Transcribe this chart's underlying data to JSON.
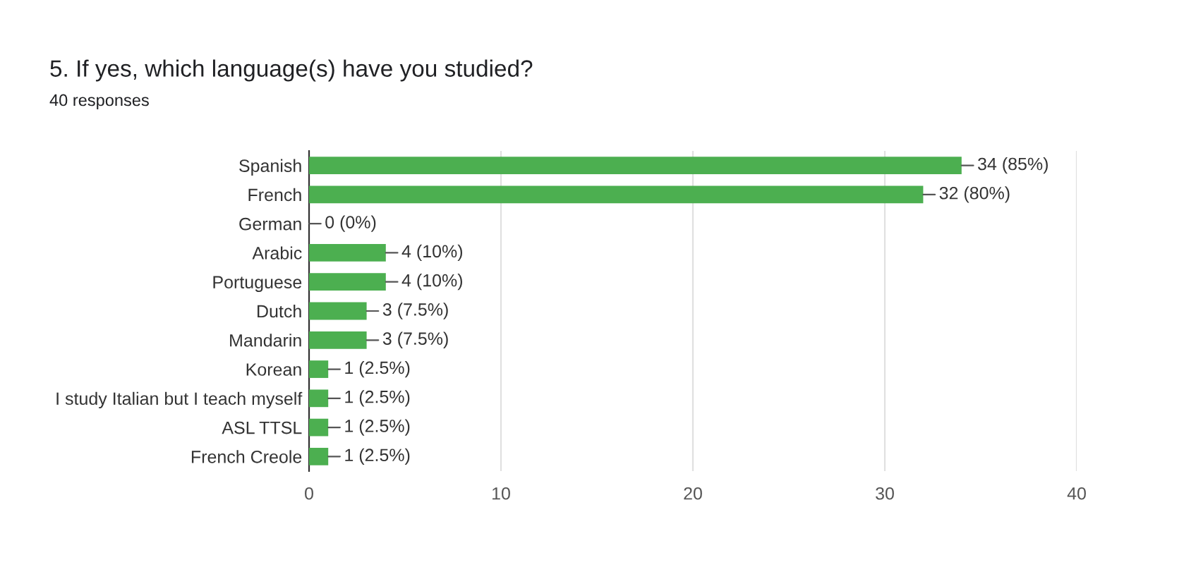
{
  "chart_data": {
    "type": "bar",
    "orientation": "horizontal",
    "title": "5. If yes, which language(s) have you studied?",
    "subtitle": "40 responses",
    "categories": [
      "Spanish",
      "French",
      "German",
      "Arabic",
      "Portuguese",
      "Dutch",
      "Mandarin",
      "Korean",
      "I study Italian but I teach myself",
      "ASL TTSL",
      "French Creole"
    ],
    "values": [
      34,
      32,
      0,
      4,
      4,
      3,
      3,
      1,
      1,
      1,
      1
    ],
    "value_labels": [
      "34 (85%)",
      "32 (80%)",
      "0 (0%)",
      "4 (10%)",
      "4 (10%)",
      "3 (7.5%)",
      "3 (7.5%)",
      "1 (2.5%)",
      "1 (2.5%)",
      "1 (2.5%)",
      "1 (2.5%)"
    ],
    "color": "#4caf50",
    "xlim": [
      0,
      40
    ],
    "xticks": [
      0,
      10,
      20,
      30,
      40
    ],
    "grid": "x",
    "legend": false
  }
}
